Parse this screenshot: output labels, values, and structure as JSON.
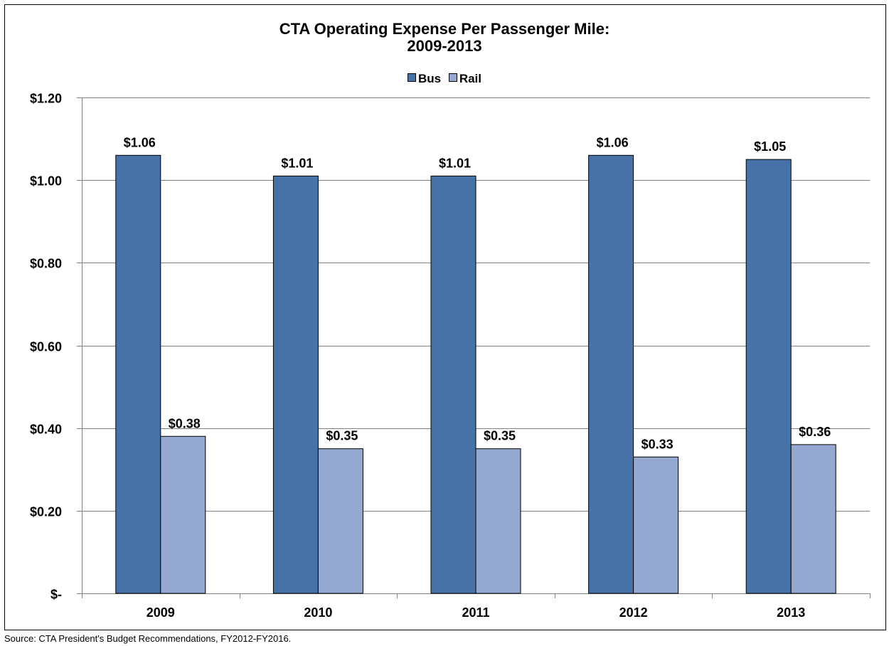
{
  "chart_data": {
    "type": "bar",
    "title": "CTA Operating Expense Per Passenger Mile:",
    "subtitle": "2009-2013",
    "categories": [
      "2009",
      "2010",
      "2011",
      "2012",
      "2013"
    ],
    "series": [
      {
        "name": "Bus",
        "color": "#4672A8",
        "values": [
          1.06,
          1.01,
          1.01,
          1.06,
          1.05
        ],
        "data_labels": [
          "$1.06",
          "$1.01",
          "$1.01",
          "$1.06",
          "$1.05"
        ]
      },
      {
        "name": "Rail",
        "color": "#95A8D0",
        "values": [
          0.38,
          0.35,
          0.35,
          0.33,
          0.36
        ],
        "data_labels": [
          "$0.38",
          "$0.35",
          "$0.35",
          "$0.33",
          "$0.36"
        ]
      }
    ],
    "ylim": [
      0,
      1.2
    ],
    "yticks": [
      0,
      0.2,
      0.4,
      0.6,
      0.8,
      1.0,
      1.2
    ],
    "ytick_labels": [
      "$-",
      "$0.20",
      "$0.40",
      "$0.60",
      "$0.80",
      "$1.00",
      "$1.20"
    ],
    "xlabel": "",
    "ylabel": "",
    "grid": true,
    "legend_position": "top-center"
  },
  "footnote": "Source: CTA President's Budget Recommendations, FY2012-FY2016."
}
